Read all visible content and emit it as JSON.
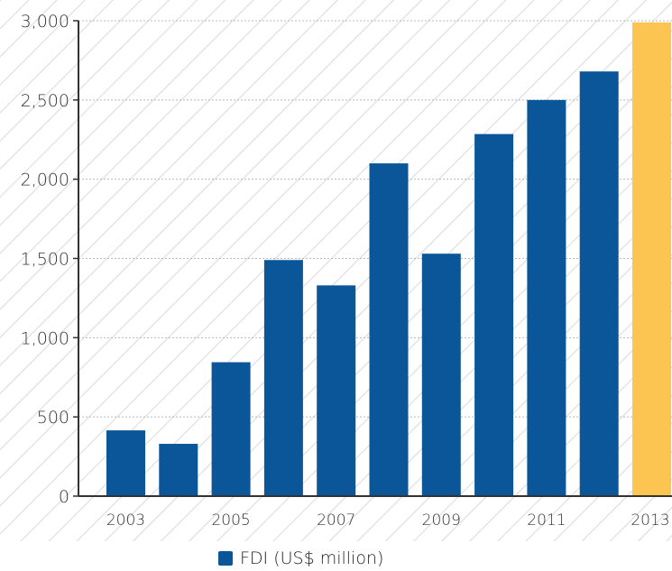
{
  "chart_data": {
    "type": "bar",
    "categories": [
      "2003",
      "2004",
      "2005",
      "2006",
      "2007",
      "2008",
      "2009",
      "2010",
      "2011",
      "2012",
      "2013"
    ],
    "x_tick_labels": [
      "2003",
      "2005",
      "2007",
      "2009",
      "2011",
      "2013"
    ],
    "series": [
      {
        "name": "FDI (US$ million)",
        "values": [
          415,
          330,
          845,
          1490,
          1330,
          2100,
          1530,
          2285,
          2500,
          2680,
          2990
        ]
      }
    ],
    "highlight_index": 10,
    "ylim": [
      0,
      3000
    ],
    "y_ticks": [
      0,
      500,
      1000,
      1500,
      2000,
      2500,
      3000
    ],
    "y_tick_labels": [
      "0",
      "500",
      "1,000",
      "1,500",
      "2,000",
      "2,500",
      "3,000"
    ],
    "grid": true,
    "legend_position": "bottom-center",
    "colors": {
      "bar": "#0b5599",
      "highlight": "#fcc451",
      "grid": "#b8b8b8",
      "hatch": "#dcdcdc",
      "axis": "#333333"
    }
  },
  "legend": {
    "label": "FDI (US$ million)"
  }
}
